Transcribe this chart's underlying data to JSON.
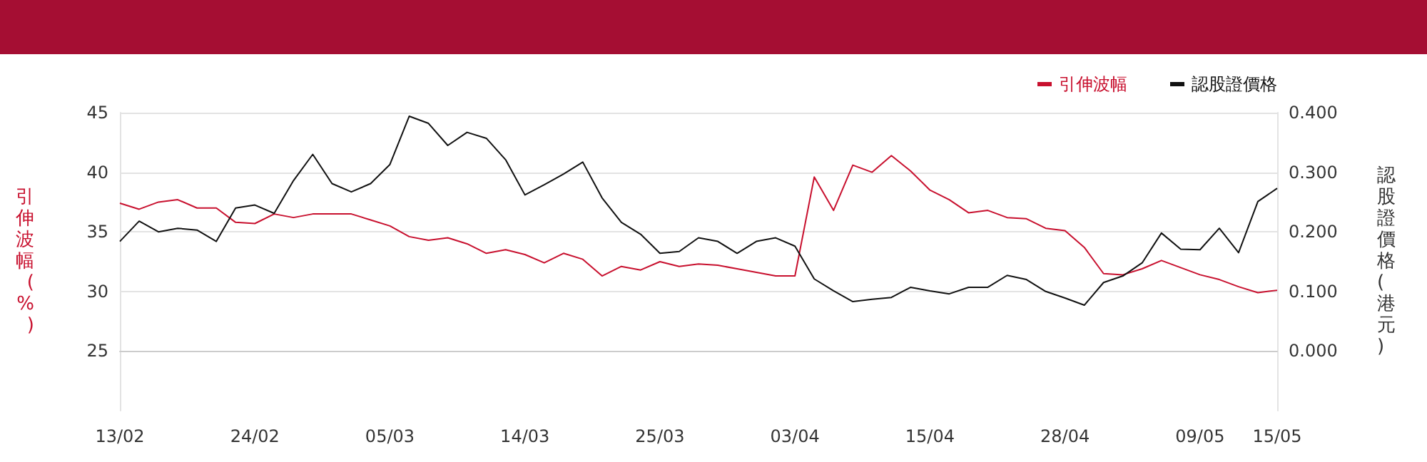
{
  "chart_data": {
    "type": "line",
    "categories": [
      "13/02",
      null,
      null,
      null,
      null,
      null,
      null,
      "24/02",
      null,
      null,
      null,
      null,
      null,
      null,
      "05/03",
      null,
      null,
      null,
      null,
      null,
      null,
      "14/03",
      null,
      null,
      null,
      null,
      null,
      null,
      "25/03",
      null,
      null,
      null,
      null,
      null,
      null,
      "03/04",
      null,
      null,
      null,
      null,
      null,
      null,
      "15/04",
      null,
      null,
      null,
      null,
      null,
      null,
      "28/04",
      null,
      null,
      null,
      null,
      null,
      null,
      "09/05",
      null,
      null,
      null,
      "15/05"
    ],
    "series": [
      {
        "name": "引伸波幅",
        "color": "#c8102e",
        "values": [
          37.4,
          36.9,
          37.5,
          37.7,
          37.0,
          37.0,
          35.8,
          35.7,
          36.5,
          36.2,
          36.5,
          36.5,
          36.5,
          36.0,
          35.5,
          34.6,
          34.3,
          34.5,
          34.0,
          33.2,
          33.5,
          33.1,
          32.4,
          33.2,
          32.7,
          31.3,
          32.1,
          31.8,
          32.5,
          32.1,
          32.3,
          32.2,
          31.9,
          31.6,
          31.3,
          31.3,
          39.6,
          36.8,
          40.6,
          40.0,
          41.4,
          40.1,
          38.5,
          37.7,
          36.6,
          36.8,
          36.2,
          36.1,
          35.3,
          35.1,
          33.7,
          31.5,
          31.4,
          31.9,
          32.6,
          32.0,
          31.4,
          31.0,
          30.4,
          29.9,
          30.1
        ]
      },
      {
        "name": "認股證價格",
        "color": "#111111",
        "axis": "y2",
        "values": [
          0.184,
          0.218,
          0.2,
          0.206,
          0.203,
          0.184,
          0.24,
          0.245,
          0.231,
          0.286,
          0.33,
          0.281,
          0.267,
          0.281,
          0.313,
          0.394,
          0.382,
          0.345,
          0.367,
          0.357,
          0.321,
          0.262,
          0.279,
          0.297,
          0.317,
          0.257,
          0.216,
          0.196,
          0.164,
          0.167,
          0.19,
          0.184,
          0.164,
          0.184,
          0.19,
          0.176,
          0.121,
          0.101,
          0.083,
          0.087,
          0.09,
          0.107,
          0.101,
          0.096,
          0.107,
          0.107,
          0.127,
          0.12,
          0.1,
          0.089,
          0.077,
          0.115,
          0.126,
          0.148,
          0.198,
          0.171,
          0.17,
          0.206,
          0.165,
          0.251,
          0.273
        ]
      }
    ],
    "ylabel": "引伸波幅(%)",
    "y2label": "認股證價格(港元)",
    "ylim": [
      20,
      45
    ],
    "yticks": [
      25,
      30,
      35,
      40,
      45
    ],
    "y2lim": [
      -0.1,
      0.4
    ],
    "y2ticks": [
      {
        "value": 0,
        "label": "0.000"
      },
      {
        "value": 0.1,
        "label": "0.100"
      },
      {
        "value": 0.2,
        "label": "0.200"
      },
      {
        "value": 0.3,
        "label": "0.300"
      },
      {
        "value": 0.4,
        "label": "0.400"
      }
    ],
    "grid": "y",
    "legend": "top right",
    "marker": "none",
    "line_style": "solid"
  }
}
